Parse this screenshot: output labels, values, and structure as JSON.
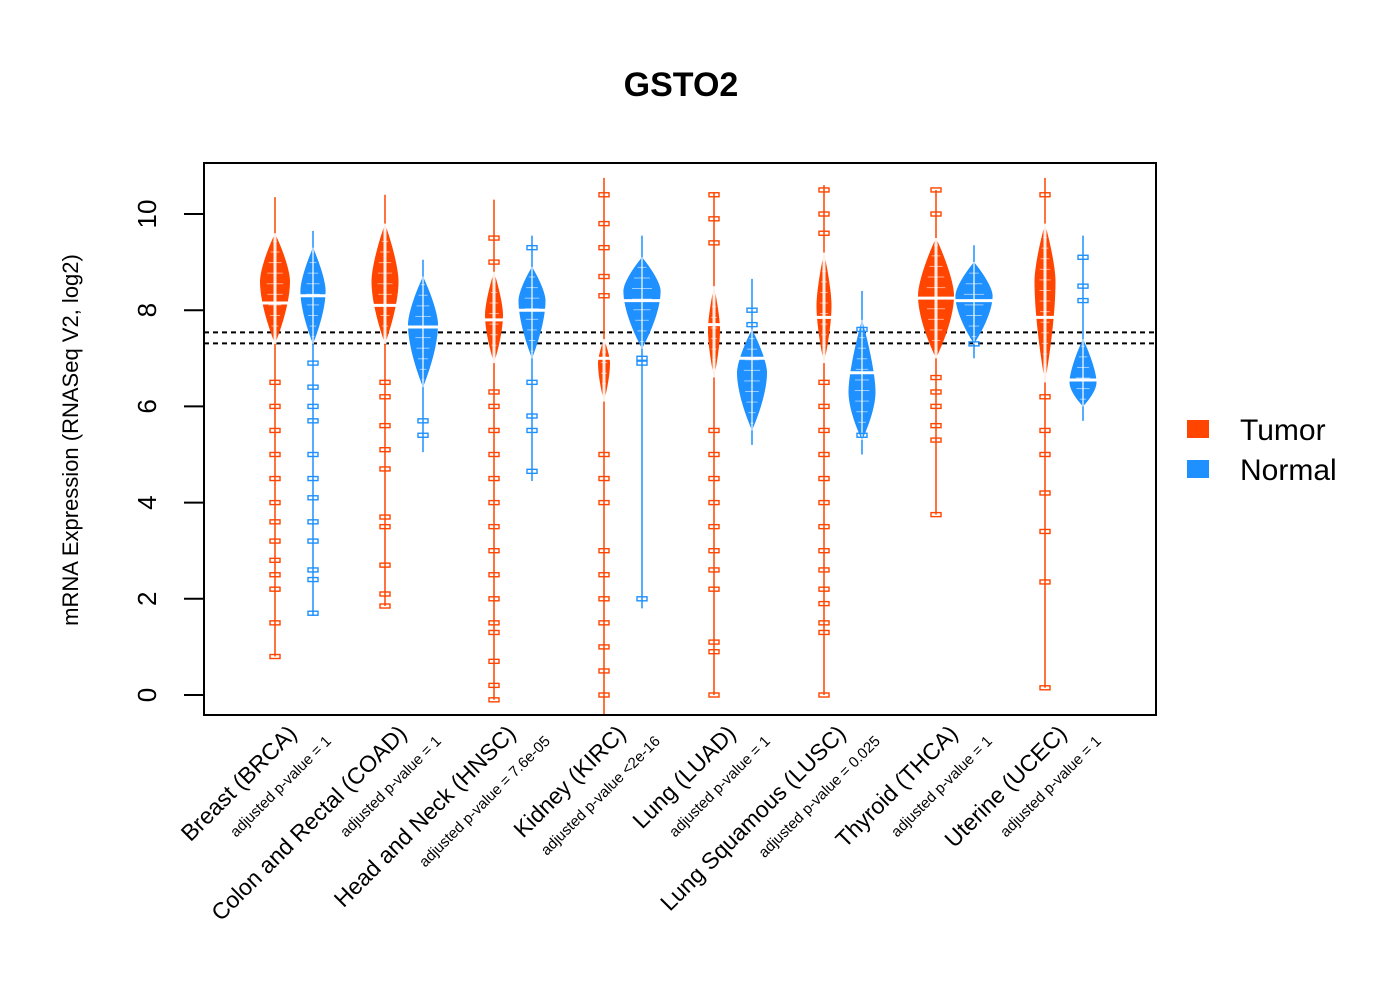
{
  "chart_data": {
    "type": "violin",
    "title": "GSTO2",
    "xlabel": "",
    "ylabel": "mRNA Expression (RNASeq V2, log2)",
    "ylim": [
      -0.4,
      11.05
    ],
    "yticks": [
      0,
      2,
      4,
      6,
      8,
      10
    ],
    "reference_lines": [
      7.54,
      7.31
    ],
    "legend": {
      "position": "right",
      "entries": [
        {
          "name": "Tumor",
          "color": "#FF4500"
        },
        {
          "name": "Normal",
          "color": "#1E90FF"
        }
      ]
    },
    "categories": [
      {
        "label": "Breast (BRCA)",
        "pvalue_label": "adjusted p-value = 1"
      },
      {
        "label": "Colon and Rectal (COAD)",
        "pvalue_label": "adjusted p-value = 1"
      },
      {
        "label": "Head and Neck (HNSC)",
        "pvalue_label": "adjusted p-value = 7.6e-05"
      },
      {
        "label": "Kidney (KIRC)",
        "pvalue_label": "adjusted p-value <2e-16"
      },
      {
        "label": "Lung (LUAD)",
        "pvalue_label": "adjusted p-value = 1"
      },
      {
        "label": "Lung Squamous (LUSC)",
        "pvalue_label": "adjusted p-value = 0.025"
      },
      {
        "label": "Thyroid (THCA)",
        "pvalue_label": "adjusted p-value = 1"
      },
      {
        "label": "Uterine (UCEC)",
        "pvalue_label": "adjusted p-value = 1"
      }
    ],
    "series": [
      {
        "name": "Tumor",
        "color": "#FF4500",
        "groups": [
          {
            "min": 0.8,
            "max": 10.35,
            "median": 8.15,
            "body_low": 7.3,
            "body_high": 9.6,
            "body_center": 8.6,
            "width": 0.5,
            "outliers": [
              0.8,
              1.5,
              2.2,
              2.5,
              2.8,
              3.2,
              3.6,
              4.0,
              4.5,
              5.0,
              5.5,
              6.0,
              6.5
            ]
          },
          {
            "min": 1.85,
            "max": 10.4,
            "median": 8.1,
            "body_low": 7.3,
            "body_high": 9.8,
            "body_center": 8.6,
            "width": 0.45,
            "outliers": [
              1.85,
              2.1,
              2.7,
              3.5,
              3.7,
              4.7,
              5.1,
              5.6,
              6.2,
              6.5
            ]
          },
          {
            "min": -0.1,
            "max": 10.3,
            "median": 7.8,
            "body_low": 6.9,
            "body_high": 8.8,
            "body_center": 7.9,
            "width": 0.3,
            "outliers": [
              -0.1,
              0.2,
              0.7,
              1.3,
              1.5,
              2.0,
              2.5,
              3.0,
              3.5,
              4.0,
              4.5,
              5.0,
              5.5,
              6.0,
              6.3,
              9.0,
              9.5
            ]
          },
          {
            "min": -0.4,
            "max": 10.75,
            "median": 7.0,
            "body_low": 6.1,
            "body_high": 7.4,
            "body_center": 6.9,
            "width": 0.2,
            "outliers": [
              0.0,
              0.5,
              1.0,
              1.5,
              2.0,
              2.5,
              3.0,
              4.0,
              4.5,
              5.0,
              8.3,
              8.7,
              9.3,
              9.8,
              10.4
            ]
          },
          {
            "min": 0.0,
            "max": 10.45,
            "median": 7.7,
            "body_low": 6.6,
            "body_high": 8.5,
            "body_center": 7.6,
            "width": 0.2,
            "outliers": [
              0.0,
              0.9,
              1.1,
              2.2,
              2.6,
              3.0,
              3.5,
              4.0,
              4.5,
              5.0,
              5.5,
              9.4,
              9.9,
              10.4
            ]
          },
          {
            "min": 0.0,
            "max": 10.6,
            "median": 7.85,
            "body_low": 6.9,
            "body_high": 9.2,
            "body_center": 8.1,
            "width": 0.25,
            "outliers": [
              0.0,
              1.3,
              1.5,
              1.9,
              2.2,
              2.6,
              3.0,
              3.5,
              4.0,
              4.5,
              5.0,
              5.5,
              6.0,
              6.5,
              9.6,
              10.0,
              10.5
            ]
          },
          {
            "min": 3.75,
            "max": 10.5,
            "median": 8.25,
            "body_low": 7.0,
            "body_high": 9.5,
            "body_center": 8.3,
            "width": 0.6,
            "outliers": [
              3.75,
              5.3,
              5.6,
              6.0,
              6.3,
              6.6,
              10.0,
              10.5
            ]
          },
          {
            "min": 0.15,
            "max": 10.75,
            "median": 7.85,
            "body_low": 6.5,
            "body_high": 9.8,
            "body_center": 8.6,
            "width": 0.35,
            "outliers": [
              0.15,
              2.35,
              3.4,
              4.2,
              5.0,
              5.5,
              6.2,
              10.4
            ]
          }
        ]
      },
      {
        "name": "Normal",
        "color": "#1E90FF",
        "groups": [
          {
            "min": 1.65,
            "max": 9.65,
            "median": 8.3,
            "body_low": 7.3,
            "body_high": 9.3,
            "body_center": 8.4,
            "width": 0.42,
            "outliers": [
              1.7,
              2.4,
              2.6,
              3.2,
              3.6,
              4.1,
              4.5,
              5.0,
              5.7,
              6.0,
              6.4,
              6.9
            ]
          },
          {
            "min": 5.05,
            "max": 9.05,
            "median": 7.65,
            "body_low": 6.4,
            "body_high": 8.7,
            "body_center": 7.7,
            "width": 0.5,
            "outliers": [
              5.4,
              5.7
            ]
          },
          {
            "min": 4.45,
            "max": 9.55,
            "median": 8.0,
            "body_low": 7.0,
            "body_high": 8.9,
            "body_center": 8.2,
            "width": 0.45,
            "outliers": [
              4.65,
              5.5,
              5.8,
              6.5,
              9.3
            ]
          },
          {
            "min": 1.8,
            "max": 9.55,
            "median": 8.2,
            "body_low": 7.2,
            "body_high": 9.1,
            "body_center": 8.4,
            "width": 0.62,
            "outliers": [
              2.0,
              6.9,
              7.0
            ]
          },
          {
            "min": 5.2,
            "max": 8.65,
            "median": 7.0,
            "body_low": 5.5,
            "body_high": 7.6,
            "body_center": 6.7,
            "width": 0.5,
            "outliers": [
              7.7,
              8.0
            ]
          },
          {
            "min": 5.0,
            "max": 8.4,
            "median": 6.7,
            "body_low": 5.3,
            "body_high": 7.8,
            "body_center": 6.3,
            "width": 0.45,
            "outliers": [
              5.4,
              7.6
            ]
          },
          {
            "min": 7.0,
            "max": 9.35,
            "median": 8.2,
            "body_low": 7.3,
            "body_high": 9.0,
            "body_center": 8.3,
            "width": 0.62,
            "outliers": [
              7.3
            ]
          },
          {
            "min": 5.7,
            "max": 9.55,
            "median": 6.55,
            "body_low": 6.0,
            "body_high": 7.4,
            "body_center": 6.5,
            "width": 0.45,
            "outliers": [
              8.2,
              8.5,
              9.1
            ]
          }
        ]
      }
    ]
  }
}
